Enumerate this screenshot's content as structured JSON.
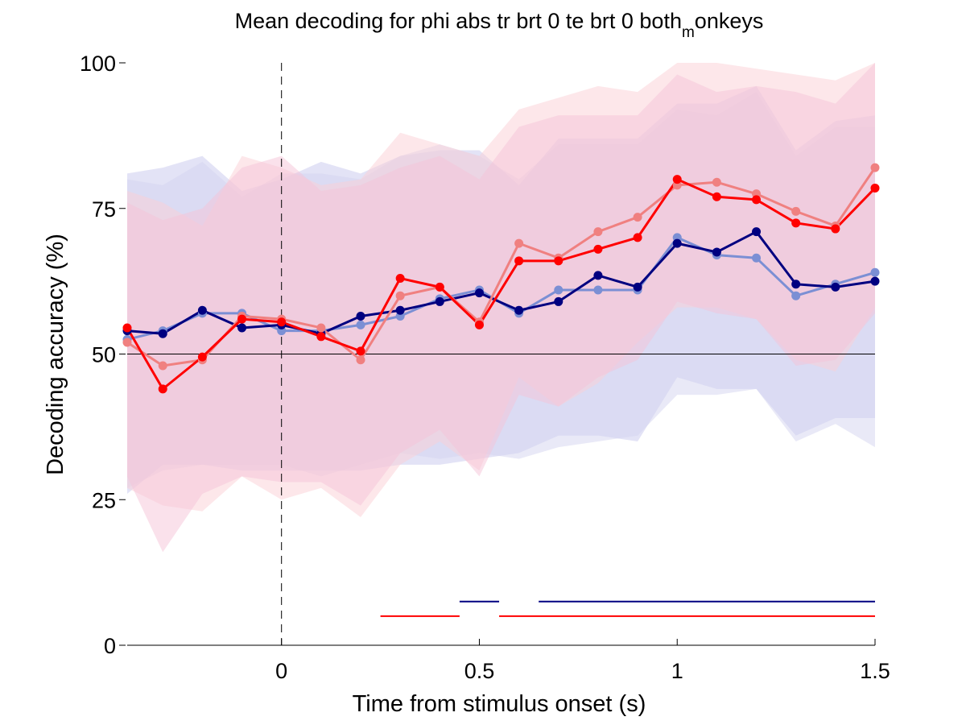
{
  "chart_data": {
    "type": "line",
    "title_main": "Mean decoding for phi abs tr brt 0 te brt 0  both",
    "title_sub": "m",
    "title_tail": "onkeys",
    "xlabel": "Time from stimulus onset (s)",
    "ylabel": "Decoding accuracy (%)",
    "xlim": [
      -0.39,
      1.5
    ],
    "ylim": [
      0,
      100
    ],
    "xticks": [
      0,
      0.5,
      1,
      1.5
    ],
    "xtick_labels": [
      "0",
      "0.5",
      "1",
      "1.5"
    ],
    "yticks": [
      0,
      25,
      50,
      75,
      100
    ],
    "ytick_labels": [
      "0",
      "25",
      "50",
      "75",
      "100"
    ],
    "chance_level": 50,
    "onset_marker": 0,
    "grid": false,
    "x": [
      -0.4,
      -0.3,
      -0.2,
      -0.1,
      0,
      0.1,
      0.2,
      0.3,
      0.4,
      0.5,
      0.6,
      0.7,
      0.8,
      0.9,
      1.0,
      1.1,
      1.2,
      1.3,
      1.4,
      1.5
    ],
    "series": [
      {
        "color": "#7b8fd4",
        "band_color": "#c8c8ee",
        "values": [
          52.5,
          54,
          57,
          57,
          54,
          54,
          55,
          56.5,
          59.5,
          61,
          57,
          61,
          61,
          61,
          70,
          67,
          66.5,
          60,
          62,
          64
        ],
        "band_upper": [
          81,
          82,
          84,
          78,
          80,
          83,
          81,
          84,
          85,
          85,
          79,
          87,
          87,
          87,
          93,
          93,
          96,
          85,
          90,
          91
        ],
        "band_lower": [
          26,
          31,
          31,
          30,
          30,
          30,
          30,
          31,
          31,
          32,
          33,
          36,
          36,
          35,
          46,
          44,
          44,
          36,
          39,
          39
        ]
      },
      {
        "color": "#000080",
        "band_color": "#d4d4f0",
        "values": [
          54,
          53.5,
          57.5,
          54.5,
          55,
          53.5,
          56.5,
          57.5,
          59,
          60.5,
          57.5,
          59,
          63.5,
          61.5,
          69,
          67.5,
          71,
          62,
          61.5,
          62.5
        ],
        "band_upper": [
          80,
          79,
          83,
          77,
          81,
          81,
          80,
          84,
          86,
          84,
          80,
          86,
          86,
          86,
          92,
          91,
          95,
          84,
          89,
          89
        ],
        "band_lower": [
          27,
          30,
          31,
          31,
          31,
          29,
          31,
          33,
          32,
          33,
          32,
          34,
          35,
          36,
          43,
          43,
          44,
          35,
          38,
          34
        ]
      },
      {
        "color": "#f08080",
        "band_color": "#fbd0d6",
        "values": [
          52,
          48,
          49,
          56.5,
          56,
          54.5,
          49,
          60,
          61.5,
          55.5,
          69,
          66.5,
          71,
          73.5,
          79,
          79.5,
          77.5,
          74.5,
          72,
          82
        ],
        "band_upper": [
          78,
          76,
          72,
          84,
          82,
          79,
          80,
          88,
          86,
          84,
          92,
          94,
          96,
          95,
          100,
          100,
          99,
          98,
          97,
          100
        ],
        "band_lower": [
          27,
          24,
          23,
          29,
          25,
          27,
          22,
          31,
          35,
          30,
          46,
          41,
          45,
          52,
          58,
          58,
          56,
          49,
          47,
          58
        ]
      },
      {
        "color": "#ff0000",
        "band_color": "#f5c3d8",
        "values": [
          54.5,
          44,
          49.5,
          56,
          55.5,
          53,
          50.5,
          63,
          61.5,
          55,
          66,
          66,
          68,
          70,
          80,
          77,
          76.5,
          72.5,
          71.5,
          78.5
        ],
        "band_upper": [
          76,
          73,
          75,
          82,
          84,
          78,
          79,
          82,
          84,
          80,
          89,
          91,
          91,
          91,
          98,
          95,
          96,
          95,
          93,
          100
        ],
        "band_lower": [
          29,
          16,
          26,
          29,
          28,
          28,
          24,
          33,
          37,
          29,
          43,
          41,
          46,
          49,
          59,
          57,
          56,
          48,
          49,
          57
        ]
      }
    ],
    "significance_bars": [
      {
        "color": "#000080",
        "y": 7.5,
        "segments": [
          [
            0.45,
            0.55
          ],
          [
            0.65,
            1.5
          ]
        ]
      },
      {
        "color": "#ff0000",
        "y": 5,
        "segments": [
          [
            0.25,
            0.45
          ],
          [
            0.55,
            1.5
          ]
        ]
      }
    ]
  }
}
